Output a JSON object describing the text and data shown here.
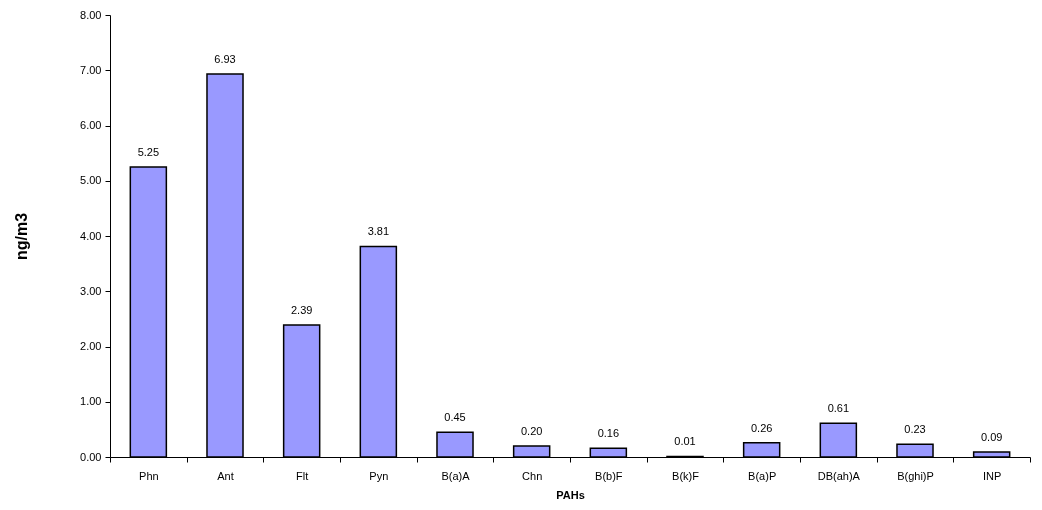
{
  "chart_data": {
    "type": "bar",
    "xlabel": "PAHs",
    "ylabel": "ng/m3",
    "categories": [
      "Phn",
      "Ant",
      "Flt",
      "Pyn",
      "B(a)A",
      "Chn",
      "B(b)F",
      "B(k)F",
      "B(a)P",
      "DB(ah)A",
      "B(ghi)P",
      "INP"
    ],
    "values": [
      5.25,
      6.93,
      2.39,
      3.81,
      0.45,
      0.2,
      0.16,
      0.01,
      0.26,
      0.61,
      0.23,
      0.09
    ],
    "value_labels": [
      "5.25",
      "6.93",
      "2.39",
      "3.81",
      "0.45",
      "0.20",
      "0.16",
      "0.01",
      "0.26",
      "0.61",
      "0.23",
      "0.09"
    ],
    "color": "#9999ff",
    "ylim": [
      0,
      8
    ],
    "yticks": [
      {
        "value": 0,
        "label": "0.00"
      },
      {
        "value": 1,
        "label": "1.00"
      },
      {
        "value": 2,
        "label": "2.00"
      },
      {
        "value": 3,
        "label": "3.00"
      },
      {
        "value": 4,
        "label": "4.00"
      },
      {
        "value": 5,
        "label": "5.00"
      },
      {
        "value": 6,
        "label": "6.00"
      },
      {
        "value": 7,
        "label": "7.00"
      },
      {
        "value": 8,
        "label": "8.00"
      }
    ]
  }
}
